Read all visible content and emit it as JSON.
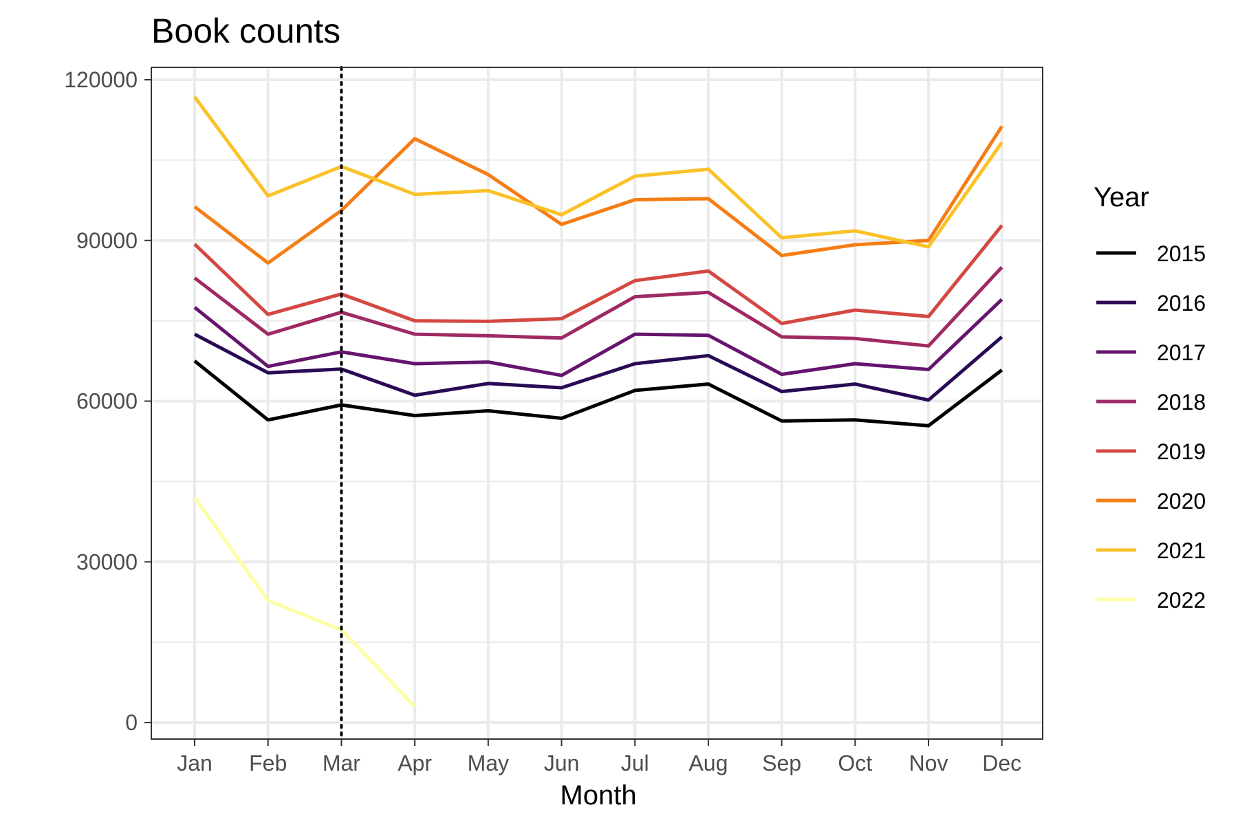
{
  "chart_data": {
    "type": "line",
    "title": "Book counts",
    "xlabel": "Month",
    "ylabel": "",
    "categories": [
      "Jan",
      "Feb",
      "Mar",
      "Apr",
      "May",
      "Jun",
      "Jul",
      "Aug",
      "Sep",
      "Oct",
      "Nov",
      "Dec"
    ],
    "ylim": [
      0,
      120000
    ],
    "y_ticks": [
      "0",
      "30000",
      "60000",
      "90000",
      "120000"
    ],
    "y_tick_values": [
      0,
      30000,
      60000,
      90000,
      120000
    ],
    "grid": true,
    "legend": {
      "title": "Year",
      "placement": "right"
    },
    "reference_line": {
      "type": "vertical",
      "x": "Mar",
      "style": "dotted",
      "color": "#000000"
    },
    "series": [
      {
        "name": "2015",
        "color": "#000004",
        "values": [
          67500,
          56500,
          59300,
          57300,
          58200,
          56800,
          62000,
          63200,
          56300,
          56500,
          55400,
          65800
        ]
      },
      {
        "name": "2016",
        "color": "#280b54",
        "values": [
          72500,
          65300,
          66000,
          61100,
          63300,
          62500,
          67000,
          68500,
          61800,
          63200,
          60200,
          72000
        ]
      },
      {
        "name": "2017",
        "color": "#65156e",
        "values": [
          77500,
          66500,
          69200,
          67000,
          67300,
          64800,
          72500,
          72300,
          65000,
          67000,
          65900,
          79000
        ]
      },
      {
        "name": "2018",
        "color": "#9f2a63",
        "values": [
          83000,
          72500,
          76600,
          72500,
          72200,
          71800,
          79500,
          80300,
          72000,
          71700,
          70300,
          85000
        ]
      },
      {
        "name": "2019",
        "color": "#d44842",
        "values": [
          89300,
          76200,
          80000,
          75000,
          74900,
          75400,
          82500,
          84300,
          74500,
          77000,
          75800,
          92800
        ]
      },
      {
        "name": "2020",
        "color": "#f57d15",
        "values": [
          96300,
          85800,
          95600,
          109000,
          102300,
          93000,
          97600,
          97800,
          87200,
          89200,
          90000,
          111300
        ]
      },
      {
        "name": "2021",
        "color": "#fac228",
        "values": [
          116800,
          98300,
          103800,
          98600,
          99300,
          94800,
          102000,
          103300,
          90500,
          91800,
          88800,
          108300
        ]
      },
      {
        "name": "2022",
        "color": "#fcffa4",
        "values": [
          42000,
          22800,
          17300,
          3000,
          null,
          null,
          null,
          null,
          null,
          null,
          null,
          null
        ]
      }
    ]
  }
}
